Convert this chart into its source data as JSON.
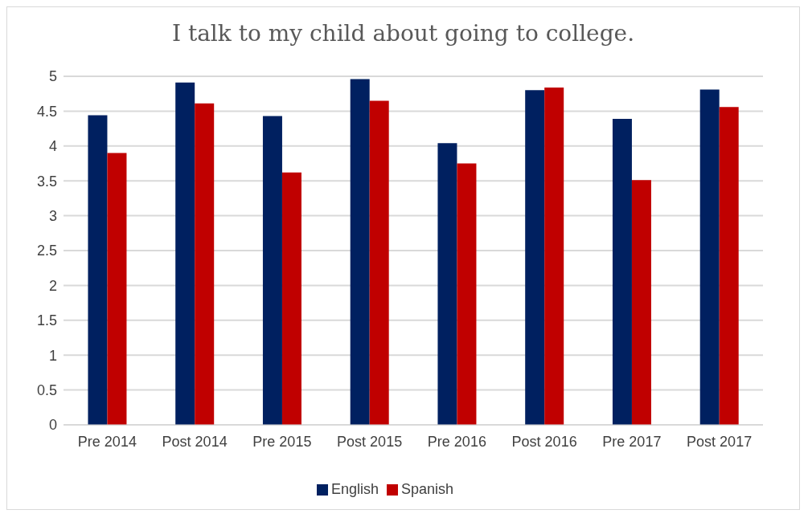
{
  "chart_data": {
    "type": "bar",
    "title": "I talk to my child about going to college.",
    "categories": [
      "Pre 2014",
      "Post 2014",
      "Pre 2015",
      "Post 2015",
      "Pre 2016",
      "Post 2016",
      "Pre 2017",
      "Post 2017"
    ],
    "series": [
      {
        "name": "English",
        "color": "#002060",
        "values": [
          4.44,
          4.91,
          4.43,
          4.96,
          4.04,
          4.8,
          4.39,
          4.81
        ]
      },
      {
        "name": "Spanish",
        "color": "#c00000",
        "values": [
          3.9,
          4.61,
          3.62,
          4.65,
          3.75,
          4.84,
          3.51,
          4.56
        ]
      }
    ],
    "ylim": [
      0,
      5
    ],
    "yticks": [
      0,
      0.5,
      1,
      1.5,
      2,
      2.5,
      3,
      3.5,
      4,
      4.5,
      5
    ],
    "grid": "y",
    "legend": "bottom"
  }
}
